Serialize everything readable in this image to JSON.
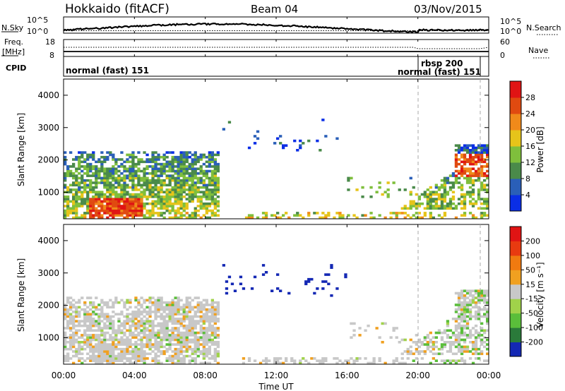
{
  "header": {
    "title": "Hokkaido (fitACF)",
    "beam": "Beam 04",
    "date": "03/Nov/2015"
  },
  "noise_panel": {
    "left_label": "N.Sky",
    "right_label": "N.Search",
    "left_ticks": [
      "10^5",
      "10^0"
    ],
    "right_ticks": [
      "10^5",
      "10^0"
    ]
  },
  "freq_panel": {
    "left_label": "Freq.",
    "left_unit": "[MHz]",
    "right_label": "Nave",
    "left_ticks": [
      "18",
      "8"
    ],
    "right_ticks": [
      "60",
      "0"
    ]
  },
  "cpid_panel": {
    "label": "CPID",
    "segments": [
      {
        "text": "normal (fast) 151",
        "start_h": 0
      },
      {
        "text": "rbsp 200",
        "start_h": 20.0
      },
      {
        "text": "normal (fast) 151",
        "start_h": 20.0
      }
    ],
    "dividers_h": [
      20.0,
      23.6
    ]
  },
  "chart_data": [
    {
      "type": "heatmap",
      "name": "power-panel",
      "ylabel": "Slant Range [km]",
      "yticks": [
        "1000",
        "2000",
        "3000",
        "4000"
      ],
      "ylim": [
        180,
        4500
      ],
      "colorbar_label": "Power [dB]",
      "colorbar_ticks": [
        "4",
        "8",
        "12",
        "16",
        "20",
        "24",
        "28"
      ],
      "colors": [
        "#0a2ee6",
        "#2a5fb8",
        "#4a8a4a",
        "#7fbf3c",
        "#e6c41a",
        "#f08a1a",
        "#e04a10",
        "#e01414"
      ],
      "clim": [
        0,
        32
      ]
    },
    {
      "type": "heatmap",
      "name": "velocity-panel",
      "ylabel": "Slant Range [km]",
      "yticks": [
        "1000",
        "2000",
        "3000",
        "4000"
      ],
      "ylim": [
        180,
        4500
      ],
      "colorbar_label": "Velocity [m s⁻¹]",
      "colorbar_ticks": [
        "200",
        "100",
        "50",
        "15",
        "-15",
        "-50",
        "-100",
        "-200"
      ],
      "colors": [
        "#1428b4",
        "#2a7a3a",
        "#5abe3a",
        "#a0d24a",
        "#c8c8c8",
        "#f0a020",
        "#f07a10",
        "#e83a10",
        "#e01414"
      ],
      "clim": [
        -250,
        250
      ]
    }
  ],
  "time_axis": {
    "ticks": [
      "00:00",
      "04:00",
      "08:00",
      "12:00",
      "16:00",
      "20:00",
      "00:00"
    ],
    "label": "Time UT",
    "range_h": [
      0,
      24
    ]
  }
}
